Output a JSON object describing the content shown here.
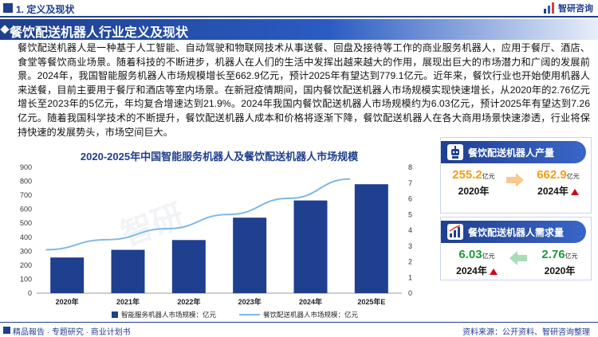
{
  "header": {
    "section": "1. 定义及现状",
    "brand": "智研咨询"
  },
  "title": "餐饮配送机器人行业定义及现状",
  "paragraph": "餐饮配送机器人是一种基于人工智能、自动驾驶和物联网技术从事送餐、回盘及接待等工作的商业服务机器人，应用于餐厅、酒店、食堂等餐饮商业场景。随着科技的不断进步，机器人在人们的生活中发挥出越来越大的作用，展现出巨大的市场潜力和广阔的发展前景。2024年，我国智能服务机器人市场规模增长至662.9亿元，预计2025年有望达到779.1亿元。近年来，餐饮行业也开始使用机器人来送餐，目前主要用于餐厅和酒店等室内场景。在新冠疫情期间，国内餐饮配送机器人市场规模实现快速增长，从2020年的2.76亿元增长至2023年的5亿元，年均复合增速达到21.9%。2024年我国内餐饮配送机器人市场规模约为6.03亿元，预计2025年有望达到7.26亿元。随着我国科学技术的不断提升，餐饮配送机器人成本和价格将逐渐下降，餐饮配送机器人在各大商用场景快速渗透，行业将保持快速的发展势头，市场空间巨大。",
  "chart_data": {
    "type": "bar",
    "title": "2020-2025年中国智能服务机器人及餐饮配送机器人市场规模",
    "categories": [
      "2020年",
      "2021年",
      "2022年",
      "2023年",
      "2024年",
      "2025年E"
    ],
    "series": [
      {
        "name": "智能服务机器人市场规模：亿元",
        "type": "bar",
        "axis": "left",
        "color": "#1f3f8f",
        "values": [
          255.2,
          310,
          380,
          540,
          662.9,
          779.1
        ]
      },
      {
        "name": "餐饮配送机器人市场规模：亿元",
        "type": "line",
        "axis": "right",
        "color": "#7fb8e6",
        "values": [
          2.76,
          3.4,
          4.1,
          5.0,
          6.03,
          7.26
        ]
      }
    ],
    "left_ticks": [
      "900",
      "800",
      "700",
      "600",
      "500",
      "400",
      "300",
      "200",
      "100",
      "0"
    ],
    "right_ticks": [
      "8",
      "7",
      "6",
      "5",
      "4",
      "3",
      "2",
      "1",
      "0"
    ],
    "ylim_left": [
      0,
      900
    ],
    "ylim_right": [
      0,
      8
    ],
    "legend": "bottom",
    "grid": false
  },
  "cards": {
    "production": {
      "title": "餐饮配送机器人产量",
      "left": {
        "value": "255.2",
        "unit": "亿元",
        "year": "2020年"
      },
      "right": {
        "value": "662.9",
        "unit": "亿元",
        "year": "2024年"
      }
    },
    "demand": {
      "title": "餐饮配送机器人需求量",
      "left": {
        "value": "6.03",
        "unit": "亿元",
        "year": "2024年"
      },
      "right": {
        "value": "2.76",
        "unit": "亿元",
        "year": "2020年"
      }
    }
  },
  "footer": {
    "left": "精品報告 · 专题研究 · 商业计划书",
    "right": "资料来源：公开资料、智研咨询整理"
  },
  "colors": {
    "primary": "#1f3f8f",
    "accent_orange": "#f39c12",
    "accent_green": "#1a9a3a",
    "arrow_red": "#d0021b",
    "line": "#7fb8e6"
  },
  "icons": {
    "logo": "chart-logo-icon",
    "production": "robot-icon",
    "demand": "chart-growth-icon"
  }
}
